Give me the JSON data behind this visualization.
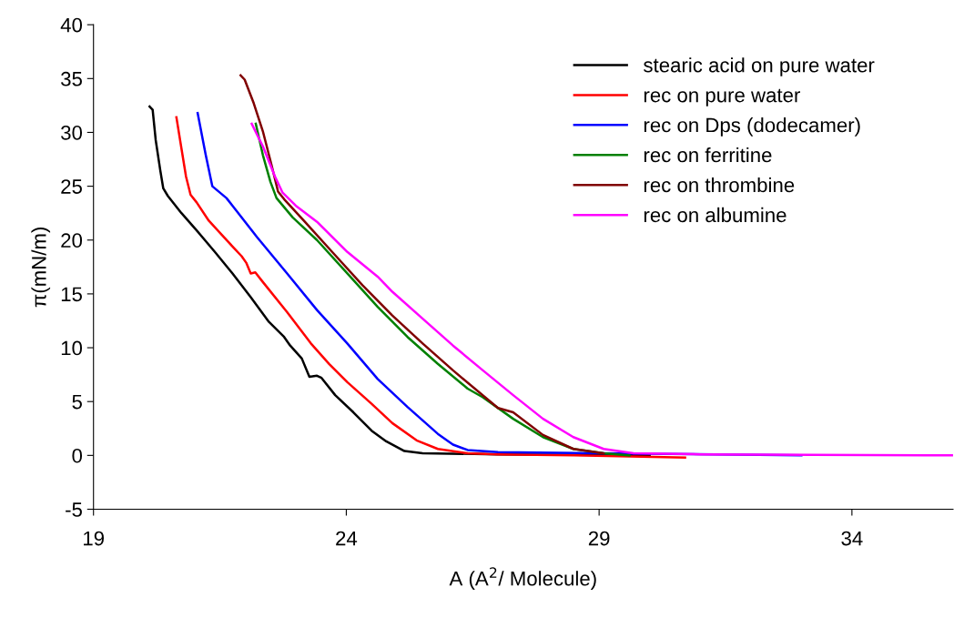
{
  "chart_data": {
    "type": "line",
    "xlabel": "A (A$^{2}$/ Molecule)",
    "ylabel": "π(mN/m)",
    "xlim": [
      19,
      36
    ],
    "xticks": [
      19,
      24,
      29,
      34
    ],
    "ylim": [
      -5,
      40
    ],
    "yticks": [
      {
        "value": -5,
        "label": "-5"
      },
      0,
      5,
      10,
      15,
      20,
      25,
      30,
      35,
      40
    ],
    "grid": false,
    "legend": "top right",
    "series": [
      {
        "name": "stearic acid on pure water",
        "color": "#000000",
        "x": [
          20.11,
          20.17,
          20.23,
          20.32,
          20.38,
          20.47,
          20.74,
          21.04,
          21.4,
          21.75,
          22.11,
          22.47,
          22.77,
          22.89,
          23.12,
          23.27,
          23.42,
          23.51,
          23.78,
          24.14,
          24.5,
          24.79,
          25.15,
          25.51,
          27.0,
          30.0
        ],
        "values": [
          32.4,
          32.1,
          29.3,
          26.5,
          24.8,
          24.1,
          22.5,
          20.9,
          18.9,
          16.9,
          14.7,
          12.4,
          11.0,
          10.2,
          9.0,
          7.3,
          7.4,
          7.2,
          5.6,
          4.0,
          2.3,
          1.3,
          0.4,
          0.2,
          0.1,
          0.0
        ]
      },
      {
        "name": "rec on pure water",
        "color": "#ff0000",
        "x": [
          20.64,
          20.74,
          20.83,
          20.92,
          21.04,
          21.28,
          21.75,
          21.93,
          22.02,
          22.11,
          22.2,
          22.35,
          22.83,
          23.3,
          23.66,
          24.02,
          24.5,
          24.91,
          25.39,
          25.81,
          26.4,
          27.0,
          28.5,
          30.7
        ],
        "values": [
          31.4,
          28.5,
          25.9,
          24.2,
          23.5,
          21.8,
          19.4,
          18.5,
          17.9,
          16.9,
          17.0,
          16.1,
          13.3,
          10.4,
          8.5,
          6.8,
          4.8,
          3.0,
          1.4,
          0.6,
          0.2,
          0.1,
          0.0,
          -0.2
        ]
      },
      {
        "name": "rec on Dps (dodecamer)",
        "color": "#0000ff",
        "x": [
          21.06,
          21.22,
          21.35,
          21.63,
          22.23,
          22.83,
          23.42,
          24.02,
          24.62,
          25.21,
          25.81,
          26.11,
          26.4,
          27.0,
          29.0,
          33.0
        ],
        "values": [
          31.8,
          27.9,
          25.0,
          23.9,
          20.3,
          16.9,
          13.5,
          10.4,
          7.1,
          4.5,
          2.0,
          1.0,
          0.5,
          0.3,
          0.2,
          0.0
        ]
      },
      {
        "name": "rec on ferritine",
        "color": "#008000",
        "x": [
          22.21,
          22.35,
          22.5,
          22.62,
          22.94,
          23.42,
          24.02,
          24.62,
          25.21,
          25.81,
          26.4,
          26.7,
          27.3,
          27.89,
          28.49,
          29.09,
          29.6
        ],
        "values": [
          30.8,
          27.9,
          25.4,
          23.9,
          22.1,
          20.0,
          16.9,
          13.8,
          11.0,
          8.5,
          6.2,
          5.4,
          3.4,
          1.7,
          0.6,
          0.2,
          0.0
        ]
      },
      {
        "name": "rec on thrombine",
        "color": "#800000",
        "x": [
          21.91,
          21.99,
          22.17,
          22.35,
          22.53,
          22.65,
          22.77,
          23.18,
          23.72,
          24.32,
          24.91,
          25.51,
          26.11,
          27.0,
          27.3,
          27.89,
          28.49,
          29.09
        ],
        "values": [
          35.3,
          34.9,
          32.7,
          30.1,
          26.8,
          24.5,
          23.8,
          21.7,
          18.9,
          15.8,
          13.0,
          10.4,
          7.9,
          4.4,
          4.0,
          1.9,
          0.6,
          0.2
        ]
      },
      {
        "name": "rec on albumine",
        "color": "#ff00ff",
        "x": [
          22.13,
          22.35,
          22.59,
          22.74,
          23.0,
          23.42,
          24.02,
          24.62,
          24.91,
          25.51,
          26.11,
          26.7,
          27.3,
          27.89,
          28.49,
          29.09,
          29.68,
          31.0,
          36.0
        ],
        "values": [
          30.8,
          28.7,
          25.9,
          24.4,
          23.2,
          21.7,
          18.9,
          16.6,
          15.2,
          12.7,
          10.2,
          7.9,
          5.6,
          3.4,
          1.7,
          0.6,
          0.2,
          0.1,
          0.0
        ]
      }
    ]
  }
}
